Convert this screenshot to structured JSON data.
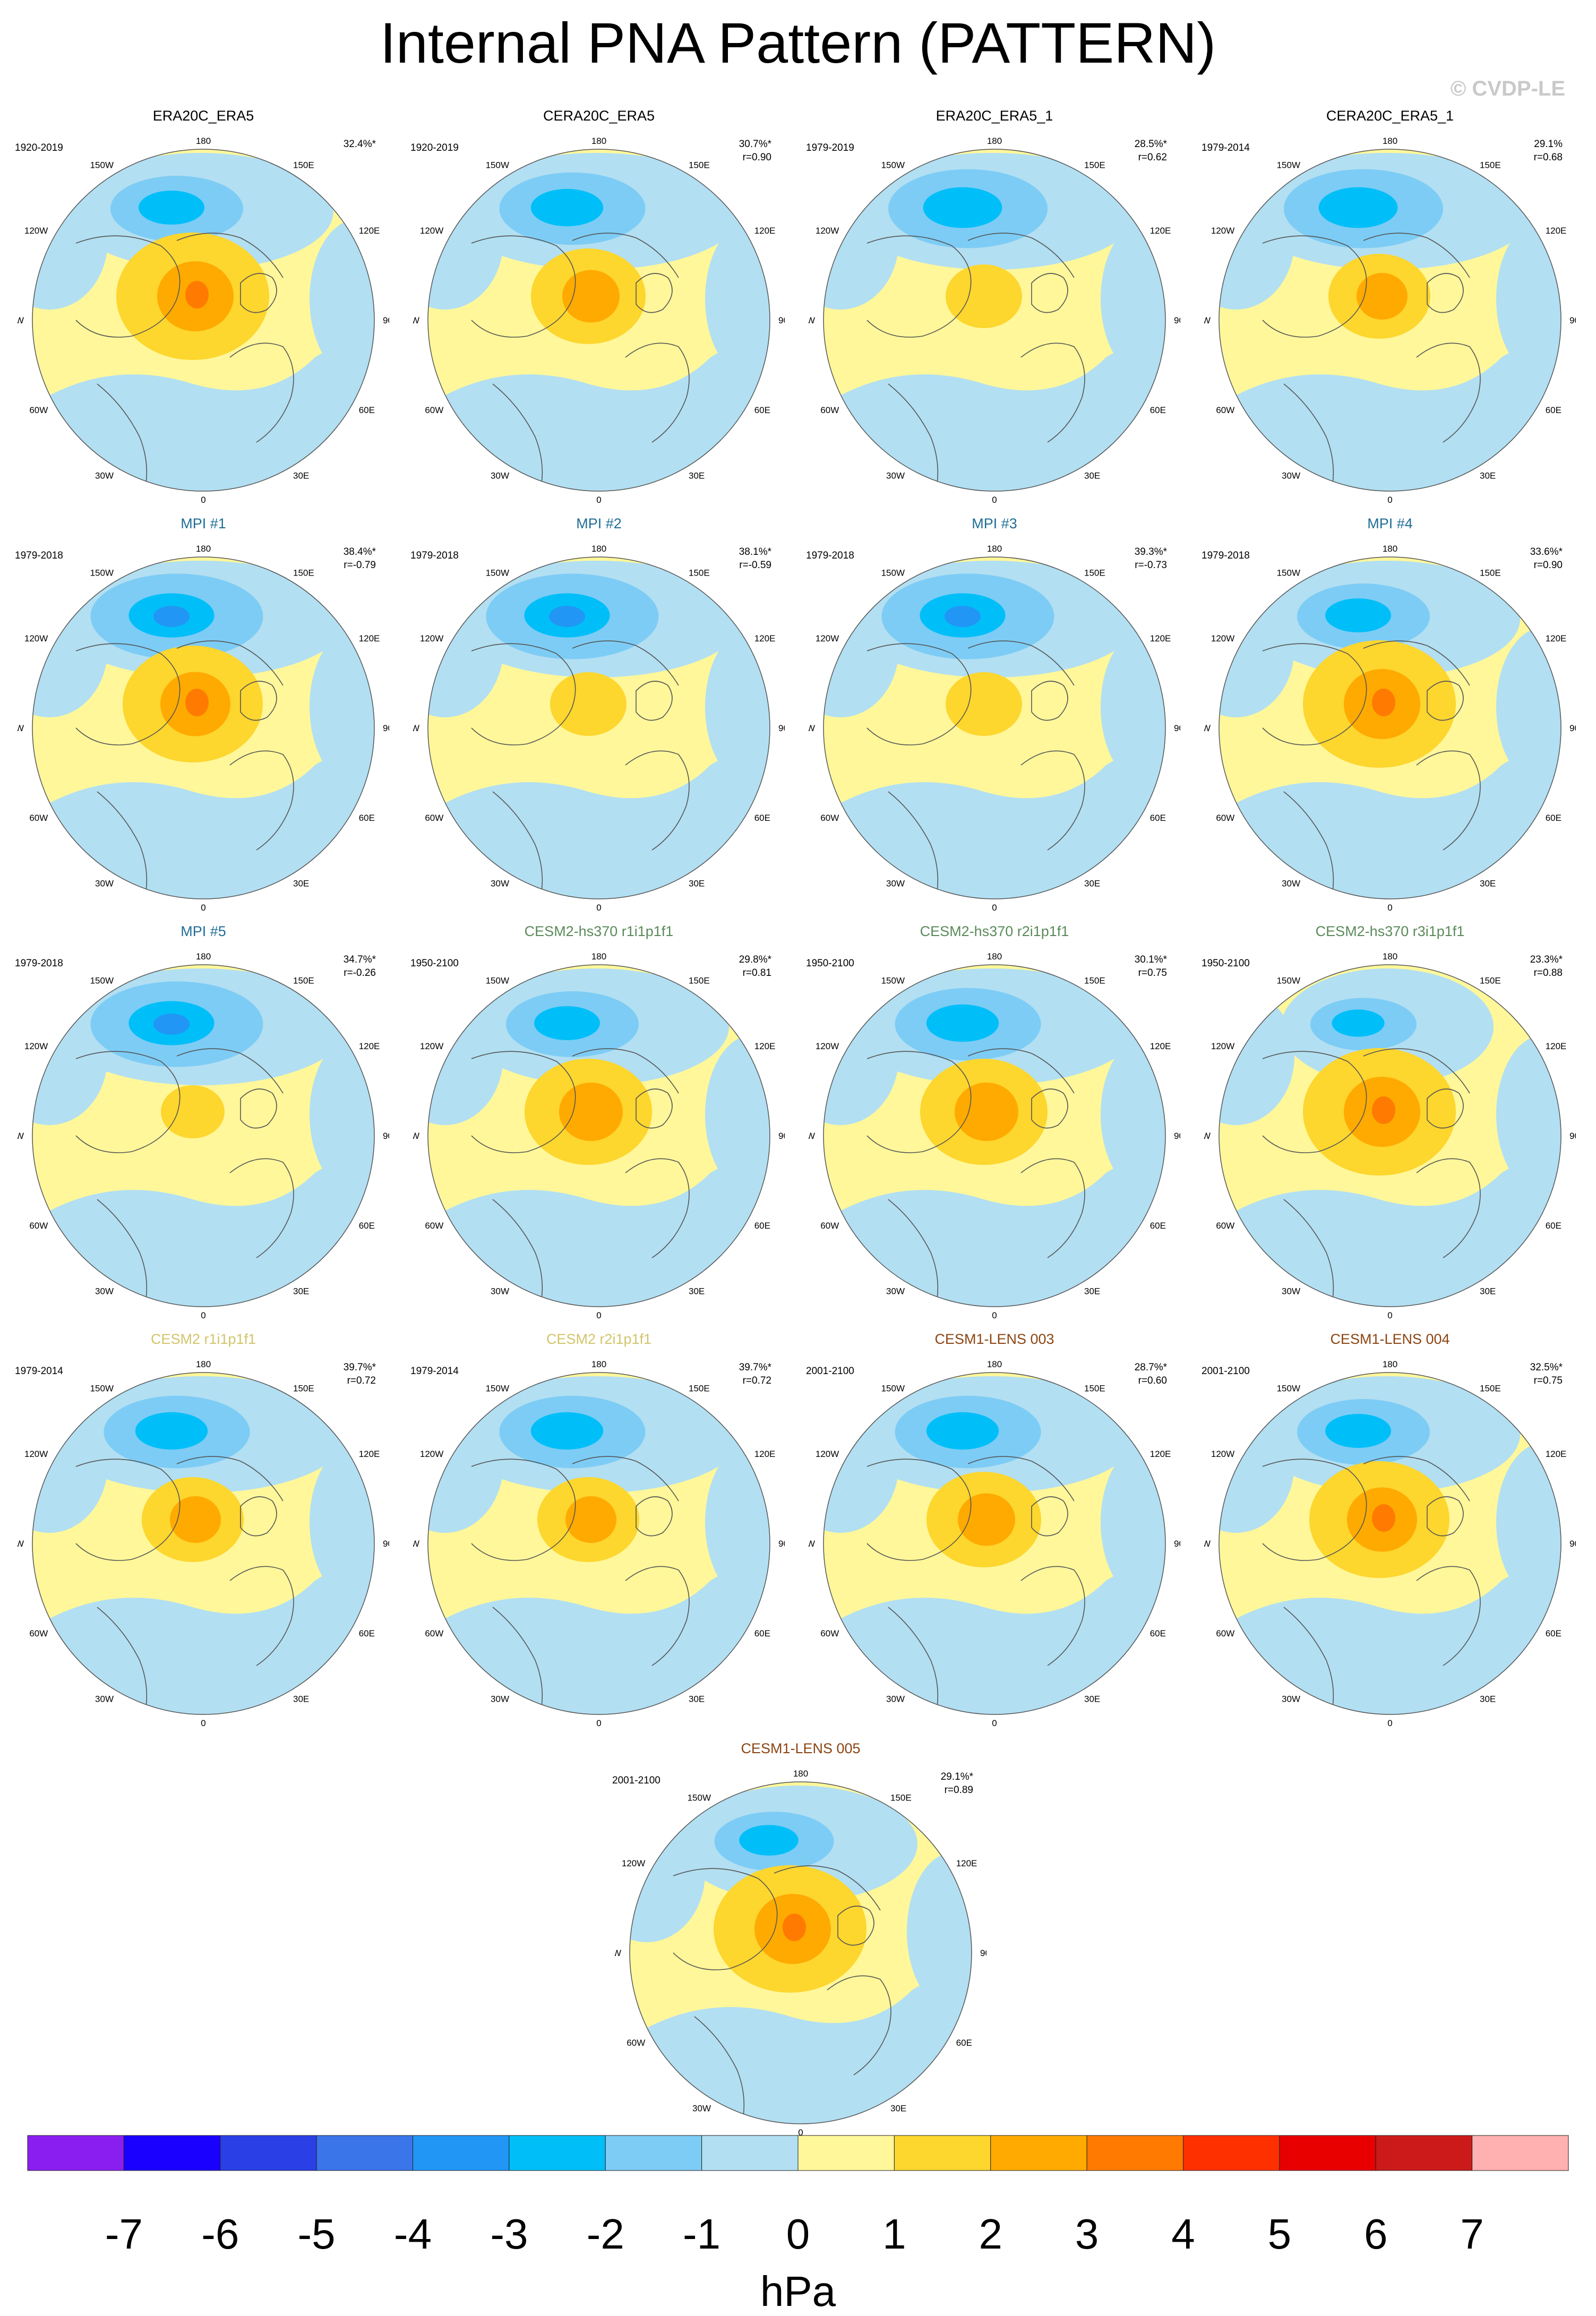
{
  "title": "Internal PNA Pattern (PATTERN)",
  "copyright": "© CVDP-LE",
  "units": "hPa",
  "longitude_labels": [
    "180",
    "150E",
    "120E",
    "90E",
    "60E",
    "30E",
    "0",
    "30W",
    "60W",
    "90W",
    "120W",
    "150W"
  ],
  "colorbar": {
    "ticks": [
      "-7",
      "-6",
      "-5",
      "-4",
      "-3",
      "-2",
      "-1",
      "0",
      "1",
      "2",
      "3",
      "4",
      "5",
      "6",
      "7"
    ],
    "colors": [
      "#8a1ef0",
      "#1a00ff",
      "#2a40e6",
      "#3a75ea",
      "#2196f5",
      "#00bff8",
      "#7dccf5",
      "#b2dff2",
      "#fff79a",
      "#fdd62e",
      "#ffaa00",
      "#ff7a00",
      "#ff3000",
      "#e80000",
      "#cc1a1a",
      "#ffb0b0"
    ]
  },
  "panels": [
    {
      "title": "ERA20C_ERA5",
      "title_color": "#000000",
      "period": "1920-2019",
      "pct": "32.4%*",
      "r": "",
      "neg": 1.0,
      "pos": 1.2
    },
    {
      "title": "CERA20C_ERA5",
      "title_color": "#000000",
      "period": "1920-2019",
      "pct": "30.7%*",
      "r": "r=0.90",
      "neg": 1.1,
      "pos": 0.9
    },
    {
      "title": "ERA20C_ERA5_1",
      "title_color": "#000000",
      "period": "1979-2019",
      "pct": "28.5%*",
      "r": "r=0.62",
      "neg": 1.2,
      "pos": 0.6
    },
    {
      "title": "CERA20C_ERA5_1",
      "title_color": "#000000",
      "period": "1979-2014",
      "pct": "29.1%",
      "r": "r=0.68",
      "neg": 1.2,
      "pos": 0.8
    },
    {
      "title": "MPI #1",
      "title_color": "#1f6e96",
      "period": "1979-2018",
      "pct": "38.4%*",
      "r": "r=-0.79",
      "neg": 1.3,
      "pos": 1.1
    },
    {
      "title": "MPI #2",
      "title_color": "#1f6e96",
      "period": "1979-2018",
      "pct": "38.1%*",
      "r": "r=-0.59",
      "neg": 1.3,
      "pos": 0.6
    },
    {
      "title": "MPI #3",
      "title_color": "#1f6e96",
      "period": "1979-2018",
      "pct": "39.3%*",
      "r": "r=-0.73",
      "neg": 1.3,
      "pos": 0.6
    },
    {
      "title": "MPI #4",
      "title_color": "#1f6e96",
      "period": "1979-2018",
      "pct": "33.6%*",
      "r": "r=0.90",
      "neg": 1.0,
      "pos": 1.2
    },
    {
      "title": "MPI #5",
      "title_color": "#1f6e96",
      "period": "1979-2018",
      "pct": "34.7%*",
      "r": "r=-0.26",
      "neg": 1.3,
      "pos": 0.5
    },
    {
      "title": "CESM2-hs370 r1i1p1f1",
      "title_color": "#5a8a5a",
      "period": "1950-2100",
      "pct": "29.8%*",
      "r": "r=0.81",
      "neg": 1.0,
      "pos": 1.0
    },
    {
      "title": "CESM2-hs370 r2i1p1f1",
      "title_color": "#5a8a5a",
      "period": "1950-2100",
      "pct": "30.1%*",
      "r": "r=0.75",
      "neg": 1.1,
      "pos": 1.0
    },
    {
      "title": "CESM2-hs370 r3i1p1f1",
      "title_color": "#5a8a5a",
      "period": "1950-2100",
      "pct": "23.3%*",
      "r": "r=0.88",
      "neg": 0.8,
      "pos": 1.2
    },
    {
      "title": "CESM2 r1i1p1f1",
      "title_color": "#d2c46a",
      "period": "1979-2014",
      "pct": "39.7%*",
      "r": "r=0.72",
      "neg": 1.1,
      "pos": 0.8
    },
    {
      "title": "CESM2 r2i1p1f1",
      "title_color": "#d2c46a",
      "period": "1979-2014",
      "pct": "39.7%*",
      "r": "r=0.72",
      "neg": 1.1,
      "pos": 0.8
    },
    {
      "title": "CESM1-LENS 003",
      "title_color": "#8b4513",
      "period": "2001-2100",
      "pct": "28.7%*",
      "r": "r=0.60",
      "neg": 1.1,
      "pos": 0.9
    },
    {
      "title": "CESM1-LENS 004",
      "title_color": "#8b4513",
      "period": "2001-2100",
      "pct": "32.5%*",
      "r": "r=0.75",
      "neg": 1.0,
      "pos": 1.1
    },
    {
      "title": "CESM1-LENS 005",
      "title_color": "#8b4513",
      "period": "2001-2100",
      "pct": "29.1%*",
      "r": "r=0.89",
      "neg": 0.9,
      "pos": 1.2
    }
  ]
}
